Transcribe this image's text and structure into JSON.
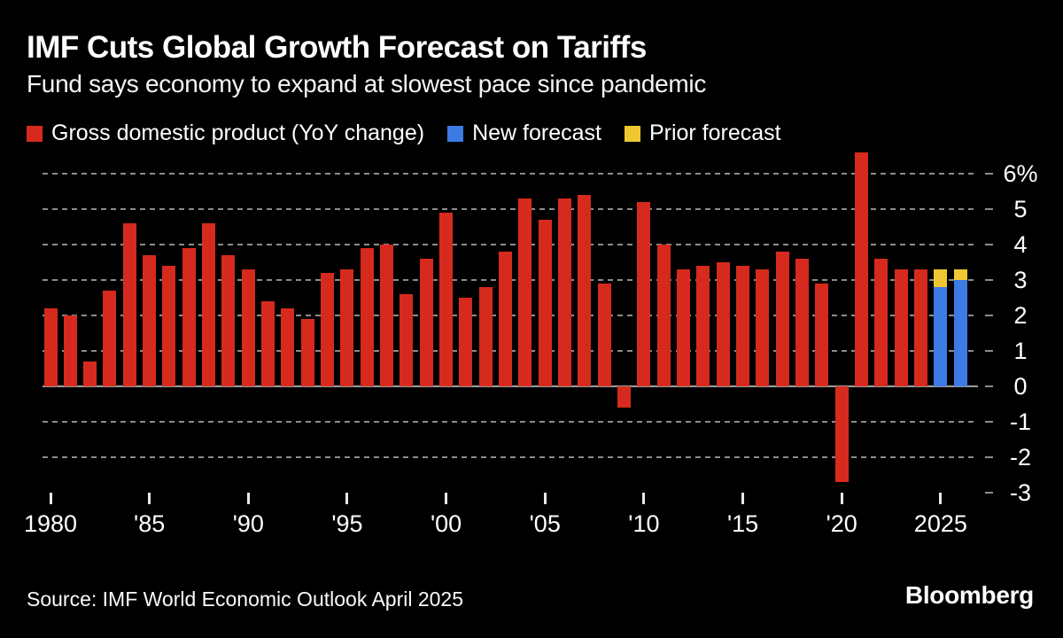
{
  "footer": {
    "source_label": "Source: IMF World Economic Outlook April 2025",
    "brand": "Bloomberg"
  },
  "colors": {
    "background": "#000000",
    "bar_red": "#d62a1e",
    "bar_blue": "#3c7ae4",
    "bar_yellow": "#eec732",
    "gridline": "#8c8c8c",
    "zero_axis": "#9e9e9e",
    "axis_text": "#ffffff"
  },
  "chart_data": {
    "type": "bar",
    "title": "IMF Cuts Global Growth Forecast on Tariffs",
    "subtitle": "Fund says economy to expand at slowest pace since pandemic",
    "unit": "%",
    "grid": "dashed-horizontal",
    "legend_position": "top",
    "ylim": [
      -3,
      6.8
    ],
    "xlim": [
      1979.5,
      2026.9
    ],
    "yticks": [
      {
        "value": 6,
        "label": "6%"
      },
      {
        "value": 5,
        "label": "5"
      },
      {
        "value": 4,
        "label": "4"
      },
      {
        "value": 3,
        "label": "3"
      },
      {
        "value": 2,
        "label": "2"
      },
      {
        "value": 1,
        "label": "1"
      },
      {
        "value": 0,
        "label": "0"
      },
      {
        "value": -1,
        "label": "-1"
      },
      {
        "value": -2,
        "label": "-2"
      },
      {
        "value": -3,
        "label": "-3"
      }
    ],
    "xticks": [
      {
        "value": 1980,
        "label": "1980"
      },
      {
        "value": 1985,
        "label": "'85"
      },
      {
        "value": 1990,
        "label": "'90"
      },
      {
        "value": 1995,
        "label": "'95"
      },
      {
        "value": 2000,
        "label": "'00"
      },
      {
        "value": 2005,
        "label": "'05"
      },
      {
        "value": 2010,
        "label": "'10"
      },
      {
        "value": 2015,
        "label": "'15"
      },
      {
        "value": 2020,
        "label": "'20"
      },
      {
        "value": 2025,
        "label": "2025"
      }
    ],
    "series": [
      {
        "name": "Gross domestic product (YoY change)",
        "color": "#d62a1e",
        "points": [
          [
            1980,
            2.2
          ],
          [
            1981,
            2.0
          ],
          [
            1982,
            0.7
          ],
          [
            1983,
            2.7
          ],
          [
            1984,
            4.6
          ],
          [
            1985,
            3.7
          ],
          [
            1986,
            3.4
          ],
          [
            1987,
            3.9
          ],
          [
            1988,
            4.6
          ],
          [
            1989,
            3.7
          ],
          [
            1990,
            3.3
          ],
          [
            1991,
            2.4
          ],
          [
            1992,
            2.2
          ],
          [
            1993,
            1.9
          ],
          [
            1994,
            3.2
          ],
          [
            1995,
            3.3
          ],
          [
            1996,
            3.9
          ],
          [
            1997,
            4.0
          ],
          [
            1998,
            2.6
          ],
          [
            1999,
            3.6
          ],
          [
            2000,
            4.9
          ],
          [
            2001,
            2.5
          ],
          [
            2002,
            2.8
          ],
          [
            2003,
            3.8
          ],
          [
            2004,
            5.3
          ],
          [
            2005,
            4.7
          ],
          [
            2006,
            5.3
          ],
          [
            2007,
            5.4
          ],
          [
            2008,
            2.9
          ],
          [
            2009,
            -0.6
          ],
          [
            2010,
            5.2
          ],
          [
            2011,
            4.0
          ],
          [
            2012,
            3.3
          ],
          [
            2013,
            3.4
          ],
          [
            2014,
            3.5
          ],
          [
            2015,
            3.4
          ],
          [
            2016,
            3.3
          ],
          [
            2017,
            3.8
          ],
          [
            2018,
            3.6
          ],
          [
            2019,
            2.9
          ],
          [
            2020,
            -2.7
          ],
          [
            2021,
            6.6
          ],
          [
            2022,
            3.6
          ],
          [
            2023,
            3.3
          ],
          [
            2024,
            3.3
          ]
        ]
      },
      {
        "name": "New forecast",
        "color": "#3c7ae4",
        "points": [
          [
            2025,
            2.8
          ],
          [
            2026,
            3.0
          ]
        ]
      },
      {
        "name": "Prior forecast",
        "color": "#eec732",
        "stacked_on": "New forecast",
        "points": [
          [
            2025,
            3.3
          ],
          [
            2026,
            3.3
          ]
        ]
      }
    ]
  }
}
